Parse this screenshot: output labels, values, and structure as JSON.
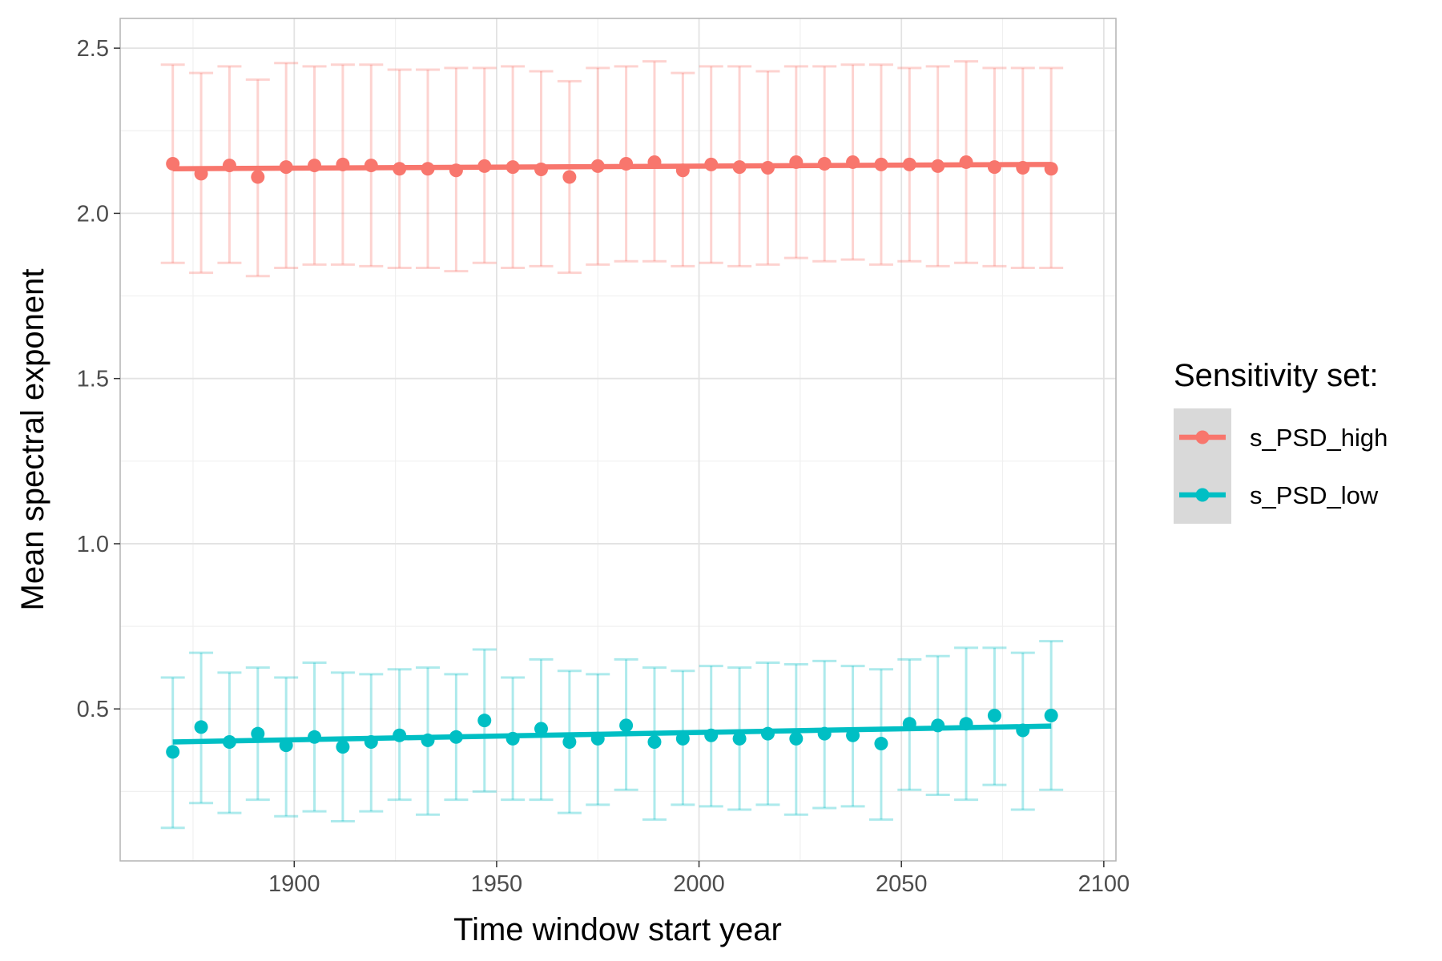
{
  "chart_data": {
    "type": "line",
    "title": "",
    "xlabel": "Time window start year",
    "ylabel": "Mean spectral exponent",
    "xlim": [
      1857,
      2103
    ],
    "ylim": [
      0.04,
      2.59
    ],
    "x_ticks": [
      1900,
      1950,
      2000,
      2050,
      2100
    ],
    "y_ticks": [
      0.5,
      1.0,
      1.5,
      2.0,
      2.5
    ],
    "grid": true,
    "legend": {
      "title": "Sensitivity set:",
      "position": "right"
    },
    "x": [
      1870,
      1877,
      1884,
      1891,
      1898,
      1905,
      1912,
      1919,
      1926,
      1933,
      1940,
      1947,
      1954,
      1961,
      1968,
      1975,
      1982,
      1989,
      1996,
      2003,
      2010,
      2017,
      2024,
      2031,
      2038,
      2045,
      2052,
      2059,
      2066,
      2073,
      2080,
      2087
    ],
    "series": [
      {
        "name": "s_PSD_high",
        "color": "#F8766D",
        "values": [
          2.15,
          2.12,
          2.145,
          2.11,
          2.14,
          2.145,
          2.148,
          2.145,
          2.135,
          2.135,
          2.13,
          2.143,
          2.14,
          2.133,
          2.11,
          2.143,
          2.15,
          2.155,
          2.13,
          2.148,
          2.14,
          2.138,
          2.155,
          2.15,
          2.155,
          2.148,
          2.148,
          2.143,
          2.155,
          2.14,
          2.138,
          2.135
        ],
        "upper": [
          2.45,
          2.425,
          2.445,
          2.405,
          2.455,
          2.445,
          2.45,
          2.45,
          2.435,
          2.435,
          2.44,
          2.44,
          2.445,
          2.43,
          2.4,
          2.44,
          2.445,
          2.46,
          2.425,
          2.445,
          2.445,
          2.43,
          2.445,
          2.445,
          2.45,
          2.45,
          2.44,
          2.445,
          2.46,
          2.44,
          2.44,
          2.44
        ],
        "lower": [
          1.85,
          1.82,
          1.85,
          1.81,
          1.835,
          1.845,
          1.845,
          1.84,
          1.835,
          1.835,
          1.825,
          1.85,
          1.835,
          1.84,
          1.82,
          1.845,
          1.855,
          1.855,
          1.84,
          1.85,
          1.84,
          1.845,
          1.865,
          1.855,
          1.86,
          1.845,
          1.855,
          1.84,
          1.85,
          1.84,
          1.835,
          1.835
        ],
        "trend": [
          2.135,
          2.148
        ]
      },
      {
        "name": "s_PSD_low",
        "color": "#00BFC4",
        "values": [
          0.37,
          0.445,
          0.4,
          0.425,
          0.39,
          0.415,
          0.385,
          0.4,
          0.42,
          0.405,
          0.415,
          0.465,
          0.41,
          0.44,
          0.4,
          0.41,
          0.45,
          0.4,
          0.41,
          0.42,
          0.41,
          0.425,
          0.41,
          0.425,
          0.42,
          0.395,
          0.455,
          0.45,
          0.455,
          0.48,
          0.435,
          0.48
        ],
        "upper": [
          0.595,
          0.67,
          0.61,
          0.625,
          0.595,
          0.64,
          0.61,
          0.605,
          0.62,
          0.625,
          0.605,
          0.68,
          0.595,
          0.65,
          0.615,
          0.605,
          0.65,
          0.625,
          0.615,
          0.63,
          0.625,
          0.64,
          0.635,
          0.645,
          0.63,
          0.62,
          0.65,
          0.66,
          0.685,
          0.685,
          0.67,
          0.705
        ],
        "lower": [
          0.14,
          0.215,
          0.185,
          0.225,
          0.175,
          0.19,
          0.16,
          0.19,
          0.225,
          0.18,
          0.225,
          0.25,
          0.225,
          0.225,
          0.185,
          0.21,
          0.255,
          0.165,
          0.21,
          0.205,
          0.195,
          0.21,
          0.18,
          0.2,
          0.205,
          0.165,
          0.255,
          0.24,
          0.225,
          0.27,
          0.195,
          0.255
        ],
        "trend": [
          0.4,
          0.448
        ]
      }
    ]
  }
}
